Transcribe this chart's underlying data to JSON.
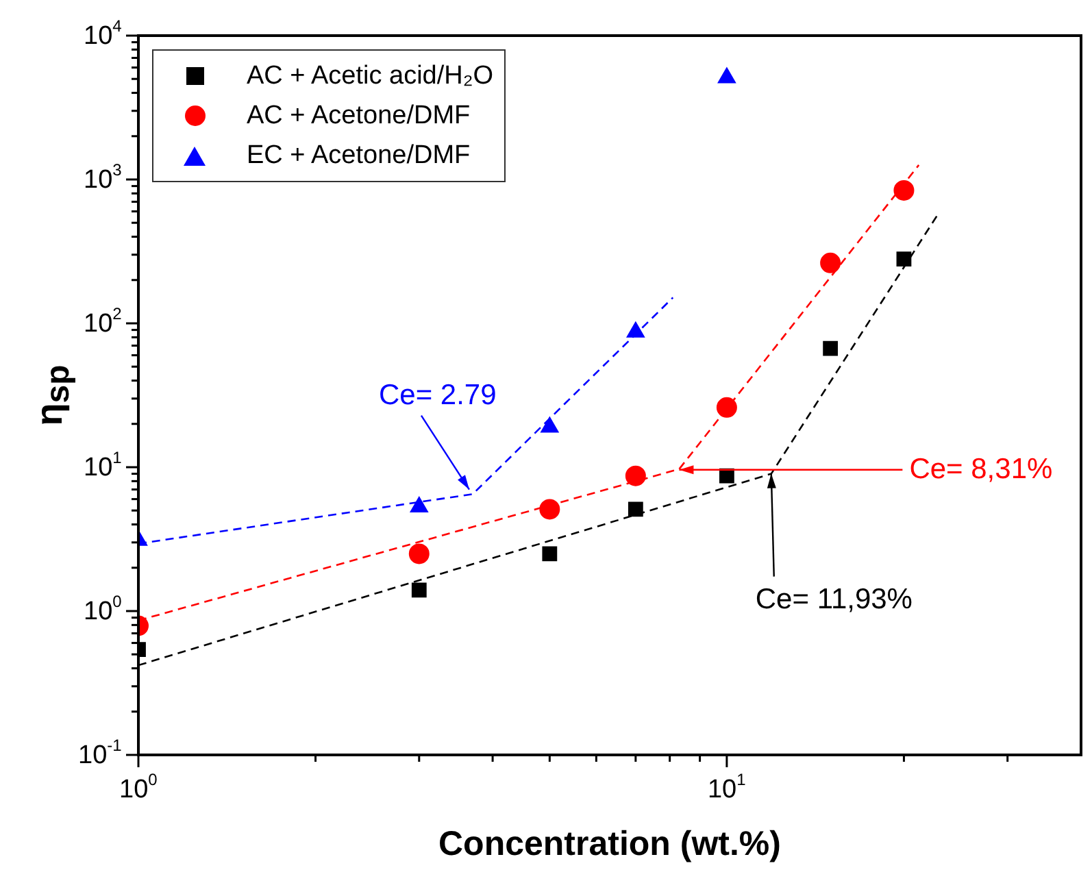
{
  "chart_data": {
    "type": "scatter",
    "xlabel": "Concentration (wt.%)",
    "ylabel": "η$_{sp}$",
    "log": "xy",
    "xlim": [
      1,
      40
    ],
    "ylim": [
      0.1,
      10000
    ],
    "xticks": [
      {
        "value": 1,
        "label": "10$^{0}$"
      },
      {
        "value": 2,
        "label": null
      },
      {
        "value": 3,
        "label": null
      },
      {
        "value": 4,
        "label": null
      },
      {
        "value": 5,
        "label": null
      },
      {
        "value": 6,
        "label": null
      },
      {
        "value": 7,
        "label": null
      },
      {
        "value": 8,
        "label": null
      },
      {
        "value": 9,
        "label": null
      },
      {
        "value": 10,
        "label": "10$^{1}$"
      },
      {
        "value": 20,
        "label": null
      },
      {
        "value": 30,
        "label": null
      }
    ],
    "yticks": [
      {
        "value": 0.1,
        "label": "10$^{-1}$"
      },
      {
        "value": 0.2,
        "label": null
      },
      {
        "value": 0.3,
        "label": null
      },
      {
        "value": 0.4,
        "label": null
      },
      {
        "value": 0.5,
        "label": null
      },
      {
        "value": 0.6,
        "label": null
      },
      {
        "value": 0.7,
        "label": null
      },
      {
        "value": 0.8,
        "label": null
      },
      {
        "value": 0.9,
        "label": null
      },
      {
        "value": 1,
        "label": "10$^{0}$"
      },
      {
        "value": 2,
        "label": null
      },
      {
        "value": 3,
        "label": null
      },
      {
        "value": 4,
        "label": null
      },
      {
        "value": 5,
        "label": null
      },
      {
        "value": 6,
        "label": null
      },
      {
        "value": 7,
        "label": null
      },
      {
        "value": 8,
        "label": null
      },
      {
        "value": 9,
        "label": null
      },
      {
        "value": 10,
        "label": "10$^{1}$"
      },
      {
        "value": 20,
        "label": null
      },
      {
        "value": 30,
        "label": null
      },
      {
        "value": 40,
        "label": null
      },
      {
        "value": 50,
        "label": null
      },
      {
        "value": 60,
        "label": null
      },
      {
        "value": 70,
        "label": null
      },
      {
        "value": 80,
        "label": null
      },
      {
        "value": 90,
        "label": null
      },
      {
        "value": 100,
        "label": "10$^{2}$"
      },
      {
        "value": 200,
        "label": null
      },
      {
        "value": 300,
        "label": null
      },
      {
        "value": 400,
        "label": null
      },
      {
        "value": 500,
        "label": null
      },
      {
        "value": 600,
        "label": null
      },
      {
        "value": 700,
        "label": null
      },
      {
        "value": 800,
        "label": null
      },
      {
        "value": 900,
        "label": null
      },
      {
        "value": 1000,
        "label": "10$^{3}$"
      },
      {
        "value": 2000,
        "label": null
      },
      {
        "value": 3000,
        "label": null
      },
      {
        "value": 4000,
        "label": null
      },
      {
        "value": 5000,
        "label": null
      },
      {
        "value": 6000,
        "label": null
      },
      {
        "value": 7000,
        "label": null
      },
      {
        "value": 8000,
        "label": null
      },
      {
        "value": 9000,
        "label": null
      },
      {
        "value": 10000,
        "label": "10$^{4}$"
      }
    ],
    "grid": false,
    "legend": "top left",
    "series": [
      {
        "name": "AC + Acetic acid/H₂O",
        "color": "#000000",
        "marker": "square",
        "x": [
          1,
          3,
          5,
          7,
          10,
          15,
          20
        ],
        "values": [
          0.54,
          1.4,
          2.5,
          5.1,
          8.7,
          67,
          280
        ]
      },
      {
        "name": "AC + Acetone/DMF",
        "color": "#ff0000",
        "marker": "circle",
        "x": [
          1,
          3,
          5,
          7,
          10,
          15,
          20
        ],
        "values": [
          0.79,
          2.5,
          5.1,
          8.7,
          26,
          263,
          840
        ]
      },
      {
        "name": "EC + Acetone/DMF",
        "color": "#0000ff",
        "marker": "triangle",
        "x": [
          1,
          3,
          5,
          7,
          10
        ],
        "values": [
          3.1,
          5.3,
          19,
          87,
          5100
        ]
      },
      {
        "type": "line",
        "color": "#000000",
        "marker": "none",
        "line_style": "dashed",
        "x": [
          1,
          11.9,
          22.8
        ],
        "values": [
          0.42,
          9,
          565
        ]
      },
      {
        "type": "line",
        "color": "#ff0000",
        "marker": "none",
        "line_style": "dashed",
        "x": [
          1,
          8.3,
          21.2
        ],
        "values": [
          0.86,
          9.7,
          1260
        ]
      },
      {
        "type": "line",
        "color": "#0000ff",
        "marker": "none",
        "line_style": "dashed",
        "x": [
          1,
          3.7,
          8.1
        ],
        "values": [
          2.94,
          6.5,
          151
        ]
      }
    ],
    "annotations": [
      {
        "text": "Ce= 2.79",
        "x": 3.65,
        "y": 7
      },
      {
        "text": "Ce= 8,31%",
        "x": 8.3,
        "y": 9.6
      },
      {
        "text": "Ce= 11,93%",
        "x": 11.9,
        "y": 9
      }
    ]
  }
}
